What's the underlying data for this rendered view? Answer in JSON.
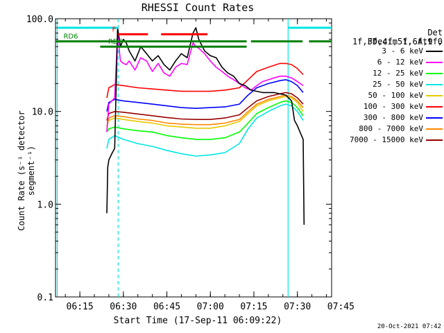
{
  "chart_data": {
    "type": "line",
    "title": "RHESSI Count Rates",
    "xlabel": "Start Time (17-Sep-11 06:09:22)",
    "ylabel": "Count Rate (s⁻¹ detector segment⁻¹)",
    "yscale": "log",
    "ylim": [
      0.1,
      100
    ],
    "xlim_minutes": [
      6.6,
      101.8
    ],
    "x_ticks": [
      {
        "minute": 15,
        "label": "06:15"
      },
      {
        "minute": 30,
        "label": "06:30"
      },
      {
        "minute": 45,
        "label": "06:45"
      },
      {
        "minute": 60,
        "label": "07:00"
      },
      {
        "minute": 75,
        "label": "07:15"
      },
      {
        "minute": 90,
        "label": "07:30"
      },
      {
        "minute": 105,
        "label": "07:45"
      }
    ],
    "y_ticks": [
      {
        "value": 100,
        "label": "100.0"
      },
      {
        "value": 10,
        "label": "10.0"
      },
      {
        "value": 1,
        "label": "1.0"
      },
      {
        "value": 0.1,
        "label": "0.1"
      }
    ],
    "legend_header": [
      "Det 1f,3f,4f,5f,6f,9f,",
      "FDecim 1, Att 0"
    ],
    "series": [
      {
        "name": "3 - 6 keV",
        "color": "#000000",
        "points": [
          [
            24.3,
            0.8
          ],
          [
            24.6,
            2.5
          ],
          [
            25,
            3
          ],
          [
            26,
            3.5
          ],
          [
            27,
            4
          ],
          [
            28,
            80
          ],
          [
            29,
            50
          ],
          [
            30,
            60
          ],
          [
            31,
            55
          ],
          [
            32,
            45
          ],
          [
            34,
            35
          ],
          [
            36,
            50
          ],
          [
            38,
            42
          ],
          [
            40,
            35
          ],
          [
            42,
            40
          ],
          [
            44,
            32
          ],
          [
            46,
            28
          ],
          [
            48,
            35
          ],
          [
            50,
            42
          ],
          [
            52,
            38
          ],
          [
            54,
            70
          ],
          [
            55,
            80
          ],
          [
            56,
            60
          ],
          [
            58,
            45
          ],
          [
            60,
            40
          ],
          [
            62,
            38
          ],
          [
            64,
            30
          ],
          [
            66,
            26
          ],
          [
            68,
            24
          ],
          [
            70,
            20
          ],
          [
            72,
            19
          ],
          [
            74,
            17
          ],
          [
            78,
            16
          ],
          [
            82,
            16
          ],
          [
            86,
            15
          ],
          [
            88,
            13
          ],
          [
            89,
            8
          ],
          [
            90,
            7
          ],
          [
            92,
            5
          ],
          [
            92.3,
            0.6
          ]
        ]
      },
      {
        "name": "6 - 12 keV",
        "color": "#ff00ff",
        "points": [
          [
            24.3,
            6
          ],
          [
            25,
            12
          ],
          [
            26,
            13
          ],
          [
            27,
            14
          ],
          [
            28,
            70
          ],
          [
            29,
            35
          ],
          [
            30,
            33
          ],
          [
            31,
            32
          ],
          [
            32,
            35
          ],
          [
            34,
            28
          ],
          [
            36,
            38
          ],
          [
            38,
            35
          ],
          [
            40,
            27
          ],
          [
            42,
            33
          ],
          [
            44,
            26
          ],
          [
            46,
            24
          ],
          [
            48,
            30
          ],
          [
            50,
            33
          ],
          [
            52,
            32
          ],
          [
            54,
            55
          ],
          [
            55,
            50
          ],
          [
            56,
            48
          ],
          [
            58,
            42
          ],
          [
            60,
            35
          ],
          [
            62,
            30
          ],
          [
            64,
            27
          ],
          [
            66,
            24
          ],
          [
            68,
            22
          ],
          [
            70,
            20
          ],
          [
            72,
            18
          ],
          [
            74,
            17
          ],
          [
            76,
            19
          ],
          [
            78,
            21
          ],
          [
            80,
            22
          ],
          [
            82,
            23
          ],
          [
            84,
            24
          ],
          [
            86,
            24
          ],
          [
            88,
            23
          ],
          [
            90,
            21
          ],
          [
            92,
            19
          ]
        ]
      },
      {
        "name": "12 - 25 keV",
        "color": "#00ff00",
        "points": [
          [
            24.3,
            6
          ],
          [
            25,
            6.5
          ],
          [
            27,
            6.8
          ],
          [
            30,
            6.5
          ],
          [
            35,
            6.2
          ],
          [
            40,
            6
          ],
          [
            45,
            5.5
          ],
          [
            50,
            5.2
          ],
          [
            55,
            5
          ],
          [
            60,
            5
          ],
          [
            65,
            5.2
          ],
          [
            70,
            6
          ],
          [
            73,
            7.5
          ],
          [
            76,
            9.5
          ],
          [
            80,
            11
          ],
          [
            84,
            12.5
          ],
          [
            86,
            13
          ],
          [
            88,
            12.5
          ],
          [
            90,
            11
          ],
          [
            92,
            9
          ]
        ]
      },
      {
        "name": "25 - 50 keV",
        "color": "#00e5e5",
        "points": [
          [
            24.3,
            4
          ],
          [
            25,
            5
          ],
          [
            27,
            5.5
          ],
          [
            30,
            5
          ],
          [
            35,
            4.5
          ],
          [
            40,
            4.2
          ],
          [
            45,
            3.8
          ],
          [
            50,
            3.5
          ],
          [
            55,
            3.3
          ],
          [
            60,
            3.4
          ],
          [
            65,
            3.6
          ],
          [
            70,
            4.5
          ],
          [
            73,
            6.5
          ],
          [
            76,
            8.5
          ],
          [
            80,
            10
          ],
          [
            84,
            11.5
          ],
          [
            86,
            12
          ],
          [
            88,
            11.5
          ],
          [
            90,
            10
          ],
          [
            92,
            8
          ]
        ]
      },
      {
        "name": "50 - 100 keV",
        "color": "#e6c800",
        "points": [
          [
            24.3,
            7
          ],
          [
            25,
            8
          ],
          [
            27,
            8.5
          ],
          [
            30,
            8.2
          ],
          [
            35,
            7.8
          ],
          [
            40,
            7.5
          ],
          [
            45,
            7
          ],
          [
            50,
            6.8
          ],
          [
            55,
            6.6
          ],
          [
            60,
            6.6
          ],
          [
            65,
            7
          ],
          [
            70,
            7.8
          ],
          [
            73,
            9.5
          ],
          [
            76,
            11.5
          ],
          [
            80,
            13
          ],
          [
            84,
            14
          ],
          [
            86,
            14.5
          ],
          [
            88,
            14
          ],
          [
            90,
            12.5
          ],
          [
            92,
            10
          ]
        ]
      },
      {
        "name": "100 - 300 keV",
        "color": "#ff0000",
        "points": [
          [
            24.3,
            14
          ],
          [
            25,
            18
          ],
          [
            27,
            19.5
          ],
          [
            30,
            19
          ],
          [
            35,
            18
          ],
          [
            40,
            17.5
          ],
          [
            45,
            17
          ],
          [
            50,
            16.5
          ],
          [
            55,
            16.5
          ],
          [
            60,
            16.5
          ],
          [
            65,
            17
          ],
          [
            70,
            18
          ],
          [
            73,
            22
          ],
          [
            76,
            27
          ],
          [
            80,
            30
          ],
          [
            84,
            33
          ],
          [
            86,
            33
          ],
          [
            88,
            32
          ],
          [
            90,
            29
          ],
          [
            92,
            25
          ]
        ]
      },
      {
        "name": "300 - 800 keV",
        "color": "#0000ff",
        "points": [
          [
            24.3,
            10
          ],
          [
            25,
            12.5
          ],
          [
            27,
            13.5
          ],
          [
            30,
            13
          ],
          [
            35,
            12.5
          ],
          [
            40,
            12
          ],
          [
            45,
            11.5
          ],
          [
            50,
            11
          ],
          [
            55,
            10.8
          ],
          [
            60,
            11
          ],
          [
            65,
            11.2
          ],
          [
            70,
            12
          ],
          [
            73,
            15
          ],
          [
            76,
            18
          ],
          [
            80,
            20
          ],
          [
            84,
            21.5
          ],
          [
            86,
            22
          ],
          [
            88,
            21
          ],
          [
            90,
            19
          ],
          [
            92,
            16
          ]
        ]
      },
      {
        "name": "800 - 7000 keV",
        "color": "#ff8800",
        "points": [
          [
            24.3,
            7
          ],
          [
            25,
            8.5
          ],
          [
            27,
            9
          ],
          [
            30,
            8.8
          ],
          [
            35,
            8.3
          ],
          [
            40,
            8
          ],
          [
            45,
            7.5
          ],
          [
            50,
            7.3
          ],
          [
            55,
            7.2
          ],
          [
            60,
            7.2
          ],
          [
            65,
            7.5
          ],
          [
            70,
            8.2
          ],
          [
            73,
            10
          ],
          [
            76,
            12
          ],
          [
            80,
            13.5
          ],
          [
            84,
            14.5
          ],
          [
            86,
            15
          ],
          [
            88,
            14.5
          ],
          [
            90,
            13
          ],
          [
            92,
            11
          ]
        ]
      },
      {
        "name": "7000 - 15000 keV",
        "color": "#990000",
        "points": [
          [
            24.3,
            8
          ],
          [
            25,
            9.5
          ],
          [
            27,
            10
          ],
          [
            30,
            9.8
          ],
          [
            35,
            9.4
          ],
          [
            40,
            9
          ],
          [
            45,
            8.6
          ],
          [
            50,
            8.3
          ],
          [
            55,
            8.2
          ],
          [
            60,
            8.2
          ],
          [
            65,
            8.5
          ],
          [
            70,
            9.2
          ],
          [
            73,
            11
          ],
          [
            76,
            13
          ],
          [
            80,
            14.5
          ],
          [
            84,
            15.5
          ],
          [
            86,
            16
          ],
          [
            88,
            15.5
          ],
          [
            90,
            14
          ],
          [
            92,
            12
          ]
        ]
      }
    ],
    "vertical_lines": [
      {
        "minute": 7.2,
        "style": "solid",
        "color": "#00e5e5"
      },
      {
        "minute": 28.2,
        "style": "dashed",
        "color": "#00e5e5"
      },
      {
        "minute": 86.8,
        "style": "solid",
        "color": "#00e5e5"
      },
      {
        "minute": 102.2,
        "style": "dashed",
        "color": "#00e5e5"
      }
    ],
    "flag_bars": [
      {
        "label": "",
        "color": "#00e5e5",
        "value": 80,
        "spans": [
          [
            7.2,
            28.2
          ],
          [
            86.8,
            102.2
          ]
        ]
      },
      {
        "label": "F",
        "color": "#ff0000",
        "value": 68,
        "spans": [
          [
            28.2,
            38.5
          ],
          [
            43,
            59
          ]
        ]
      },
      {
        "label": "RD6",
        "color": "#008000",
        "value": 57,
        "spans": [
          [
            6.6,
            101.8
          ]
        ],
        "gaps": [
          [
            72.5,
            74
          ],
          [
            91.8,
            94
          ]
        ]
      },
      {
        "label": "RD6",
        "color": "#008000",
        "value": 50,
        "spans": [
          [
            22,
            72.5
          ]
        ]
      }
    ]
  },
  "timestamp": "20-Oct-2021 07:42"
}
